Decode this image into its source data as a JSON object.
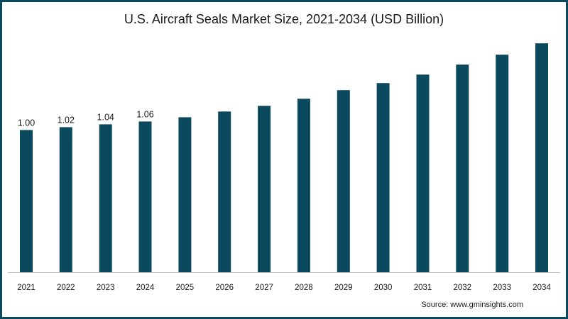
{
  "chart_data": {
    "type": "bar",
    "title": "U.S. Aircraft Seals Market Size, 2021-2034 (USD Billion)",
    "xlabel": "",
    "ylabel": "",
    "categories": [
      "2021",
      "2022",
      "2023",
      "2024",
      "2025",
      "2026",
      "2027",
      "2028",
      "2029",
      "2030",
      "2031",
      "2032",
      "2033",
      "2034"
    ],
    "values": [
      1.0,
      1.02,
      1.04,
      1.06,
      1.09,
      1.13,
      1.17,
      1.22,
      1.28,
      1.33,
      1.39,
      1.46,
      1.53,
      1.61
    ],
    "data_labels": [
      "1.00",
      "1.02",
      "1.04",
      "1.06",
      "",
      "",
      "",
      "",
      "",
      "",
      "",
      "",
      "",
      ""
    ],
    "ylim": [
      0,
      1.7
    ],
    "grid": false,
    "bar_color": "#0b4a5e"
  },
  "source": "Source: www.gminsights.com",
  "frame_color": "#0b4a5e"
}
